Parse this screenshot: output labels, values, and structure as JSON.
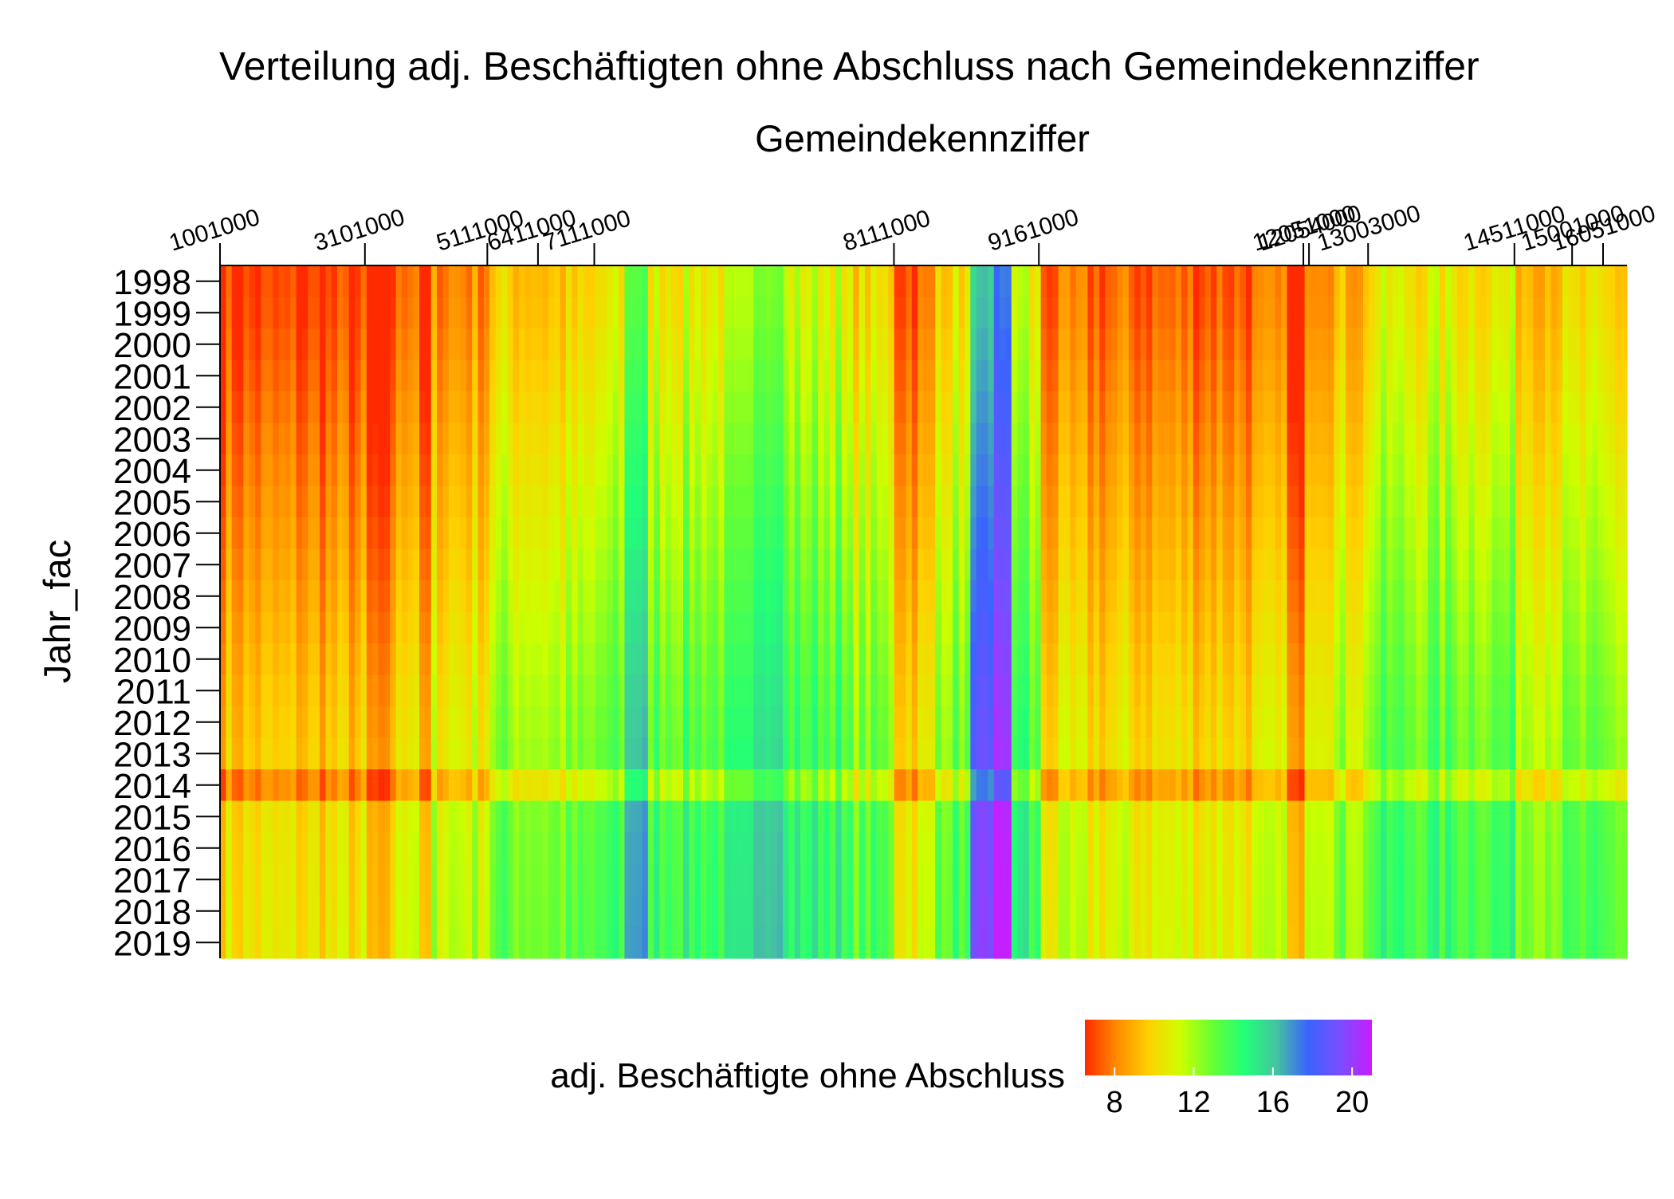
{
  "chart_data": {
    "type": "heatmap",
    "title": "Verteilung adj. Beschäftigten ohne Abschluss nach Gemeindekennziffer",
    "xlabel": "Gemeindekennziffer",
    "ylabel": "Jahr_fac",
    "x_axis_position": "top",
    "x_tick_labels": [
      "1001000",
      "3101000",
      "5111000",
      "6411000",
      "7111000",
      "8111000",
      "9161000",
      "12051000",
      "12054000",
      "13003000",
      "14511000",
      "15001000",
      "16051000"
    ],
    "x_tick_fractions": [
      0.0,
      0.103,
      0.19,
      0.226,
      0.266,
      0.479,
      0.582,
      0.77,
      0.774,
      0.816,
      0.92,
      0.961,
      0.983
    ],
    "years": [
      "1998",
      "1999",
      "2000",
      "2001",
      "2002",
      "2003",
      "2004",
      "2005",
      "2006",
      "2007",
      "2008",
      "2009",
      "2010",
      "2011",
      "2012",
      "2013",
      "2014",
      "2015",
      "2016",
      "2017",
      "2018",
      "2019"
    ],
    "year_offsets": [
      -1.6,
      -1.5,
      -1.3,
      -1.1,
      -0.9,
      -0.7,
      -0.5,
      -0.3,
      -0.1,
      0.1,
      0.3,
      0.5,
      0.7,
      0.9,
      1.05,
      1.2,
      -0.4,
      1.7,
      1.8,
      1.85,
      1.9,
      1.95
    ],
    "column_profile": [
      {
        "from": 0.0,
        "to": 0.103,
        "value": 8.3
      },
      {
        "from": 0.103,
        "to": 0.125,
        "value": 7.4
      },
      {
        "from": 0.125,
        "to": 0.19,
        "value": 9.8
      },
      {
        "from": 0.19,
        "to": 0.226,
        "value": 11.2
      },
      {
        "from": 0.226,
        "to": 0.266,
        "value": 11.0
      },
      {
        "from": 0.266,
        "to": 0.3,
        "value": 11.8
      },
      {
        "from": 0.3,
        "to": 0.38,
        "value": 12.4
      },
      {
        "from": 0.38,
        "to": 0.44,
        "value": 12.8
      },
      {
        "from": 0.44,
        "to": 0.479,
        "value": 11.5
      },
      {
        "from": 0.479,
        "to": 0.51,
        "value": 9.0
      },
      {
        "from": 0.51,
        "to": 0.545,
        "value": 11.8
      },
      {
        "from": 0.545,
        "to": 0.565,
        "value": 13.5
      },
      {
        "from": 0.565,
        "to": 0.56,
        "value": 16.0
      },
      {
        "from": 0.545,
        "to": 0.575,
        "value": 13.0
      },
      {
        "from": 0.575,
        "to": 0.582,
        "value": 12.0
      },
      {
        "from": 0.582,
        "to": 0.77,
        "value": 9.0
      },
      {
        "from": 0.77,
        "to": 0.816,
        "value": 10.6
      },
      {
        "from": 0.816,
        "to": 0.92,
        "value": 12.1
      },
      {
        "from": 0.92,
        "to": 1.0,
        "value": 11.2
      }
    ],
    "special_columns": [
      {
        "at": 0.545,
        "width": 0.02,
        "value": 17.5
      },
      {
        "at": 0.557,
        "width": 0.008,
        "value": 19.0
      },
      {
        "at": 0.11,
        "width": 0.01,
        "value": 7.0
      },
      {
        "at": 0.145,
        "width": 0.006,
        "value": 7.2
      },
      {
        "at": 0.296,
        "width": 0.015,
        "value": 15.0
      },
      {
        "at": 0.39,
        "width": 0.02,
        "value": 14.5
      },
      {
        "at": 0.765,
        "width": 0.01,
        "value": 7.2
      }
    ],
    "colorbar": {
      "title": "adj. Beschäftigte ohne Abschluss",
      "ticks": [
        "8",
        "12",
        "16",
        "20"
      ],
      "range": [
        6.5,
        21
      ],
      "colors": [
        "#ff2a00",
        "#ff8c00",
        "#ffd000",
        "#ccff00",
        "#66ff33",
        "#22ff77",
        "#44c4a0",
        "#3a63ff",
        "#7a4dff",
        "#c81dff"
      ]
    }
  }
}
